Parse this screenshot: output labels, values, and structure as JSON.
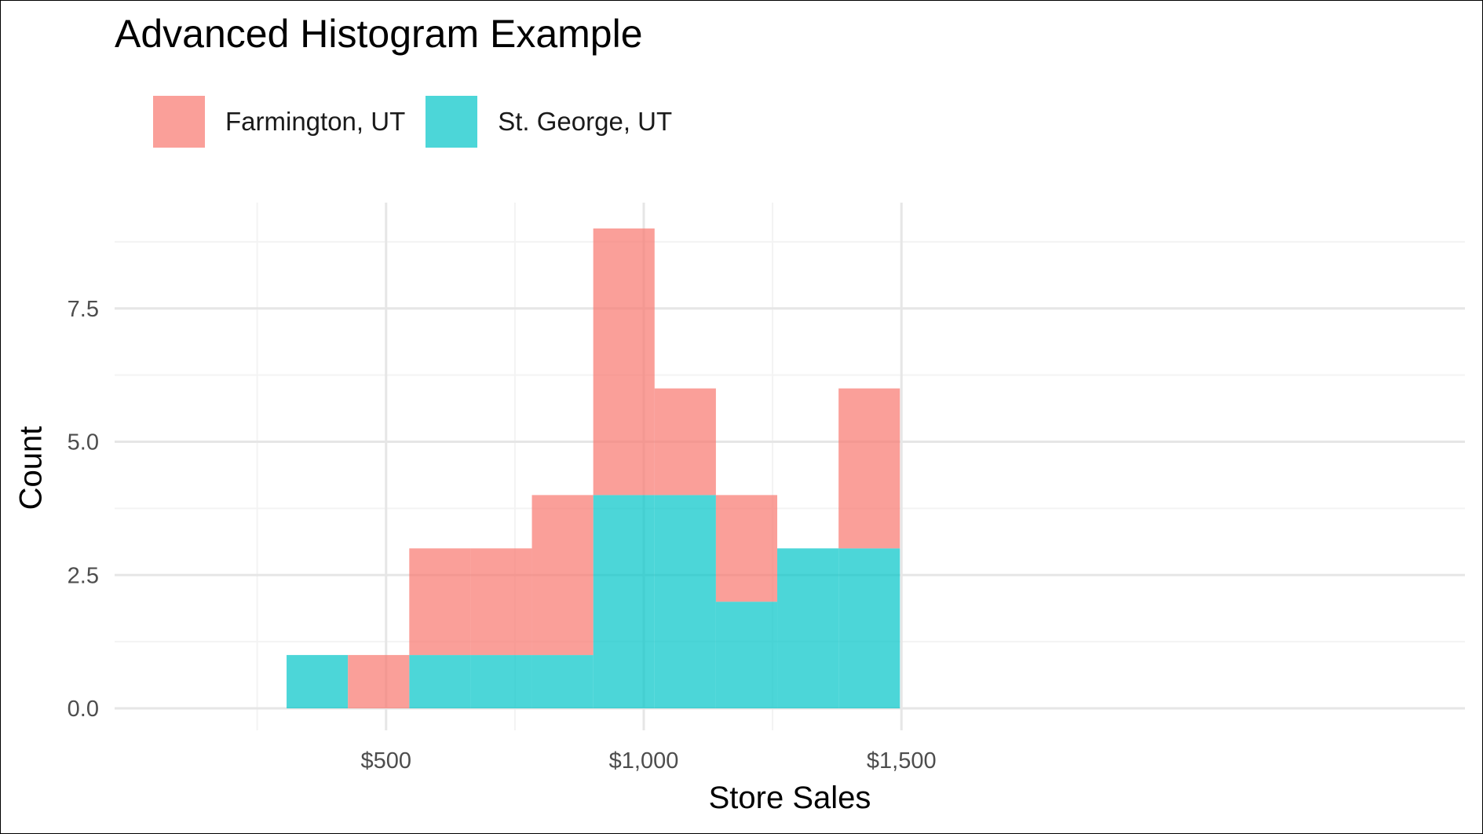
{
  "chart_data": {
    "type": "bar",
    "title": "Advanced Histogram Example",
    "xlabel": "Store Sales",
    "ylabel": "Count",
    "bar_layout": "stacked histogram",
    "bin_width": 119,
    "bins": [
      {
        "x_start": 307,
        "x_end": 426
      },
      {
        "x_start": 426,
        "x_end": 545
      },
      {
        "x_start": 545,
        "x_end": 664
      },
      {
        "x_start": 664,
        "x_end": 783
      },
      {
        "x_start": 783,
        "x_end": 902
      },
      {
        "x_start": 902,
        "x_end": 1021
      },
      {
        "x_start": 1021,
        "x_end": 1140
      },
      {
        "x_start": 1140,
        "x_end": 1259
      },
      {
        "x_start": 1259,
        "x_end": 1378
      },
      {
        "x_start": 1378,
        "x_end": 1497
      }
    ],
    "series": [
      {
        "name": "St. George, UT",
        "color": "#00C5C8",
        "values": [
          1,
          0,
          1,
          1,
          1,
          4,
          4,
          2,
          3,
          3
        ]
      },
      {
        "name": "Farmington, UT",
        "color": "#F8766D",
        "values": [
          0,
          1,
          2,
          2,
          3,
          5,
          2,
          2,
          0,
          3
        ]
      }
    ],
    "x_ticks": [
      {
        "value": 500,
        "label": "$500"
      },
      {
        "value": 1000,
        "label": "$1,000"
      },
      {
        "value": 1500,
        "label": "$1,500"
      }
    ],
    "y_ticks": [
      {
        "value": 0,
        "label": "0.0"
      },
      {
        "value": 2.5,
        "label": "2.5"
      },
      {
        "value": 5,
        "label": "5.0"
      },
      {
        "value": 7.5,
        "label": "7.5"
      }
    ],
    "xlim": [
      250,
      1550
    ],
    "ylim": [
      0,
      9
    ],
    "grid": true,
    "legend_position": "top-left"
  }
}
